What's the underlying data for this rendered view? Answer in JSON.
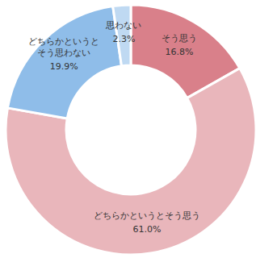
{
  "chart_data": {
    "type": "pie",
    "categories": [
      "そう思う",
      "どちらかというとそう思う",
      "どちらかというとそう思わない",
      "思わない"
    ],
    "values": [
      16.8,
      61.0,
      19.9,
      2.3
    ],
    "value_labels": [
      "16.8%",
      "61.0%",
      "19.9%",
      "2.3%"
    ],
    "colors": [
      "#d9808a",
      "#e9b6bb",
      "#8fbde9",
      "#bfd9f2"
    ],
    "data_labels": true
  }
}
